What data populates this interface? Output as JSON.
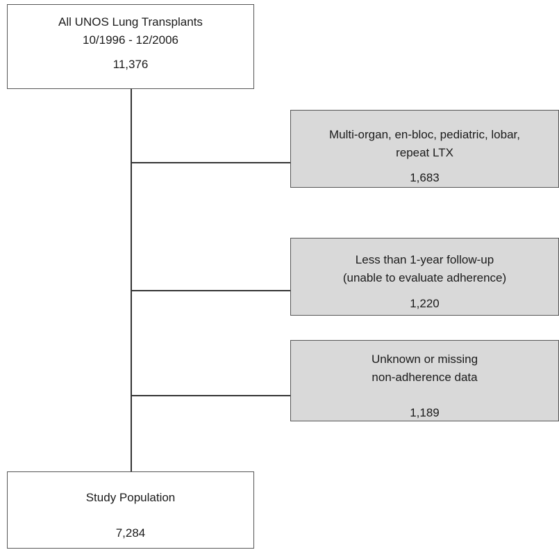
{
  "top_box": {
    "lines": [
      "All UNOS Lung Transplants",
      "10/1996 - 12/2006"
    ],
    "count": "11,376"
  },
  "exclusions": [
    {
      "lines": [
        "Multi-organ, en-bloc, pediatric, lobar,",
        "repeat LTX"
      ],
      "count": "1,683"
    },
    {
      "lines": [
        "Less than 1-year follow-up",
        "(unable to evaluate adherence)"
      ],
      "count": "1,220"
    },
    {
      "lines": [
        "Unknown or missing",
        "non-adherence data"
      ],
      "count": "1,189"
    }
  ],
  "bottom_box": {
    "lines": [
      "Study Population"
    ],
    "count": "7,284"
  },
  "colors": {
    "box_border": "#555555",
    "exclusion_fill": "#d9d9d9",
    "main_fill": "#ffffff",
    "connector": "#333333"
  }
}
